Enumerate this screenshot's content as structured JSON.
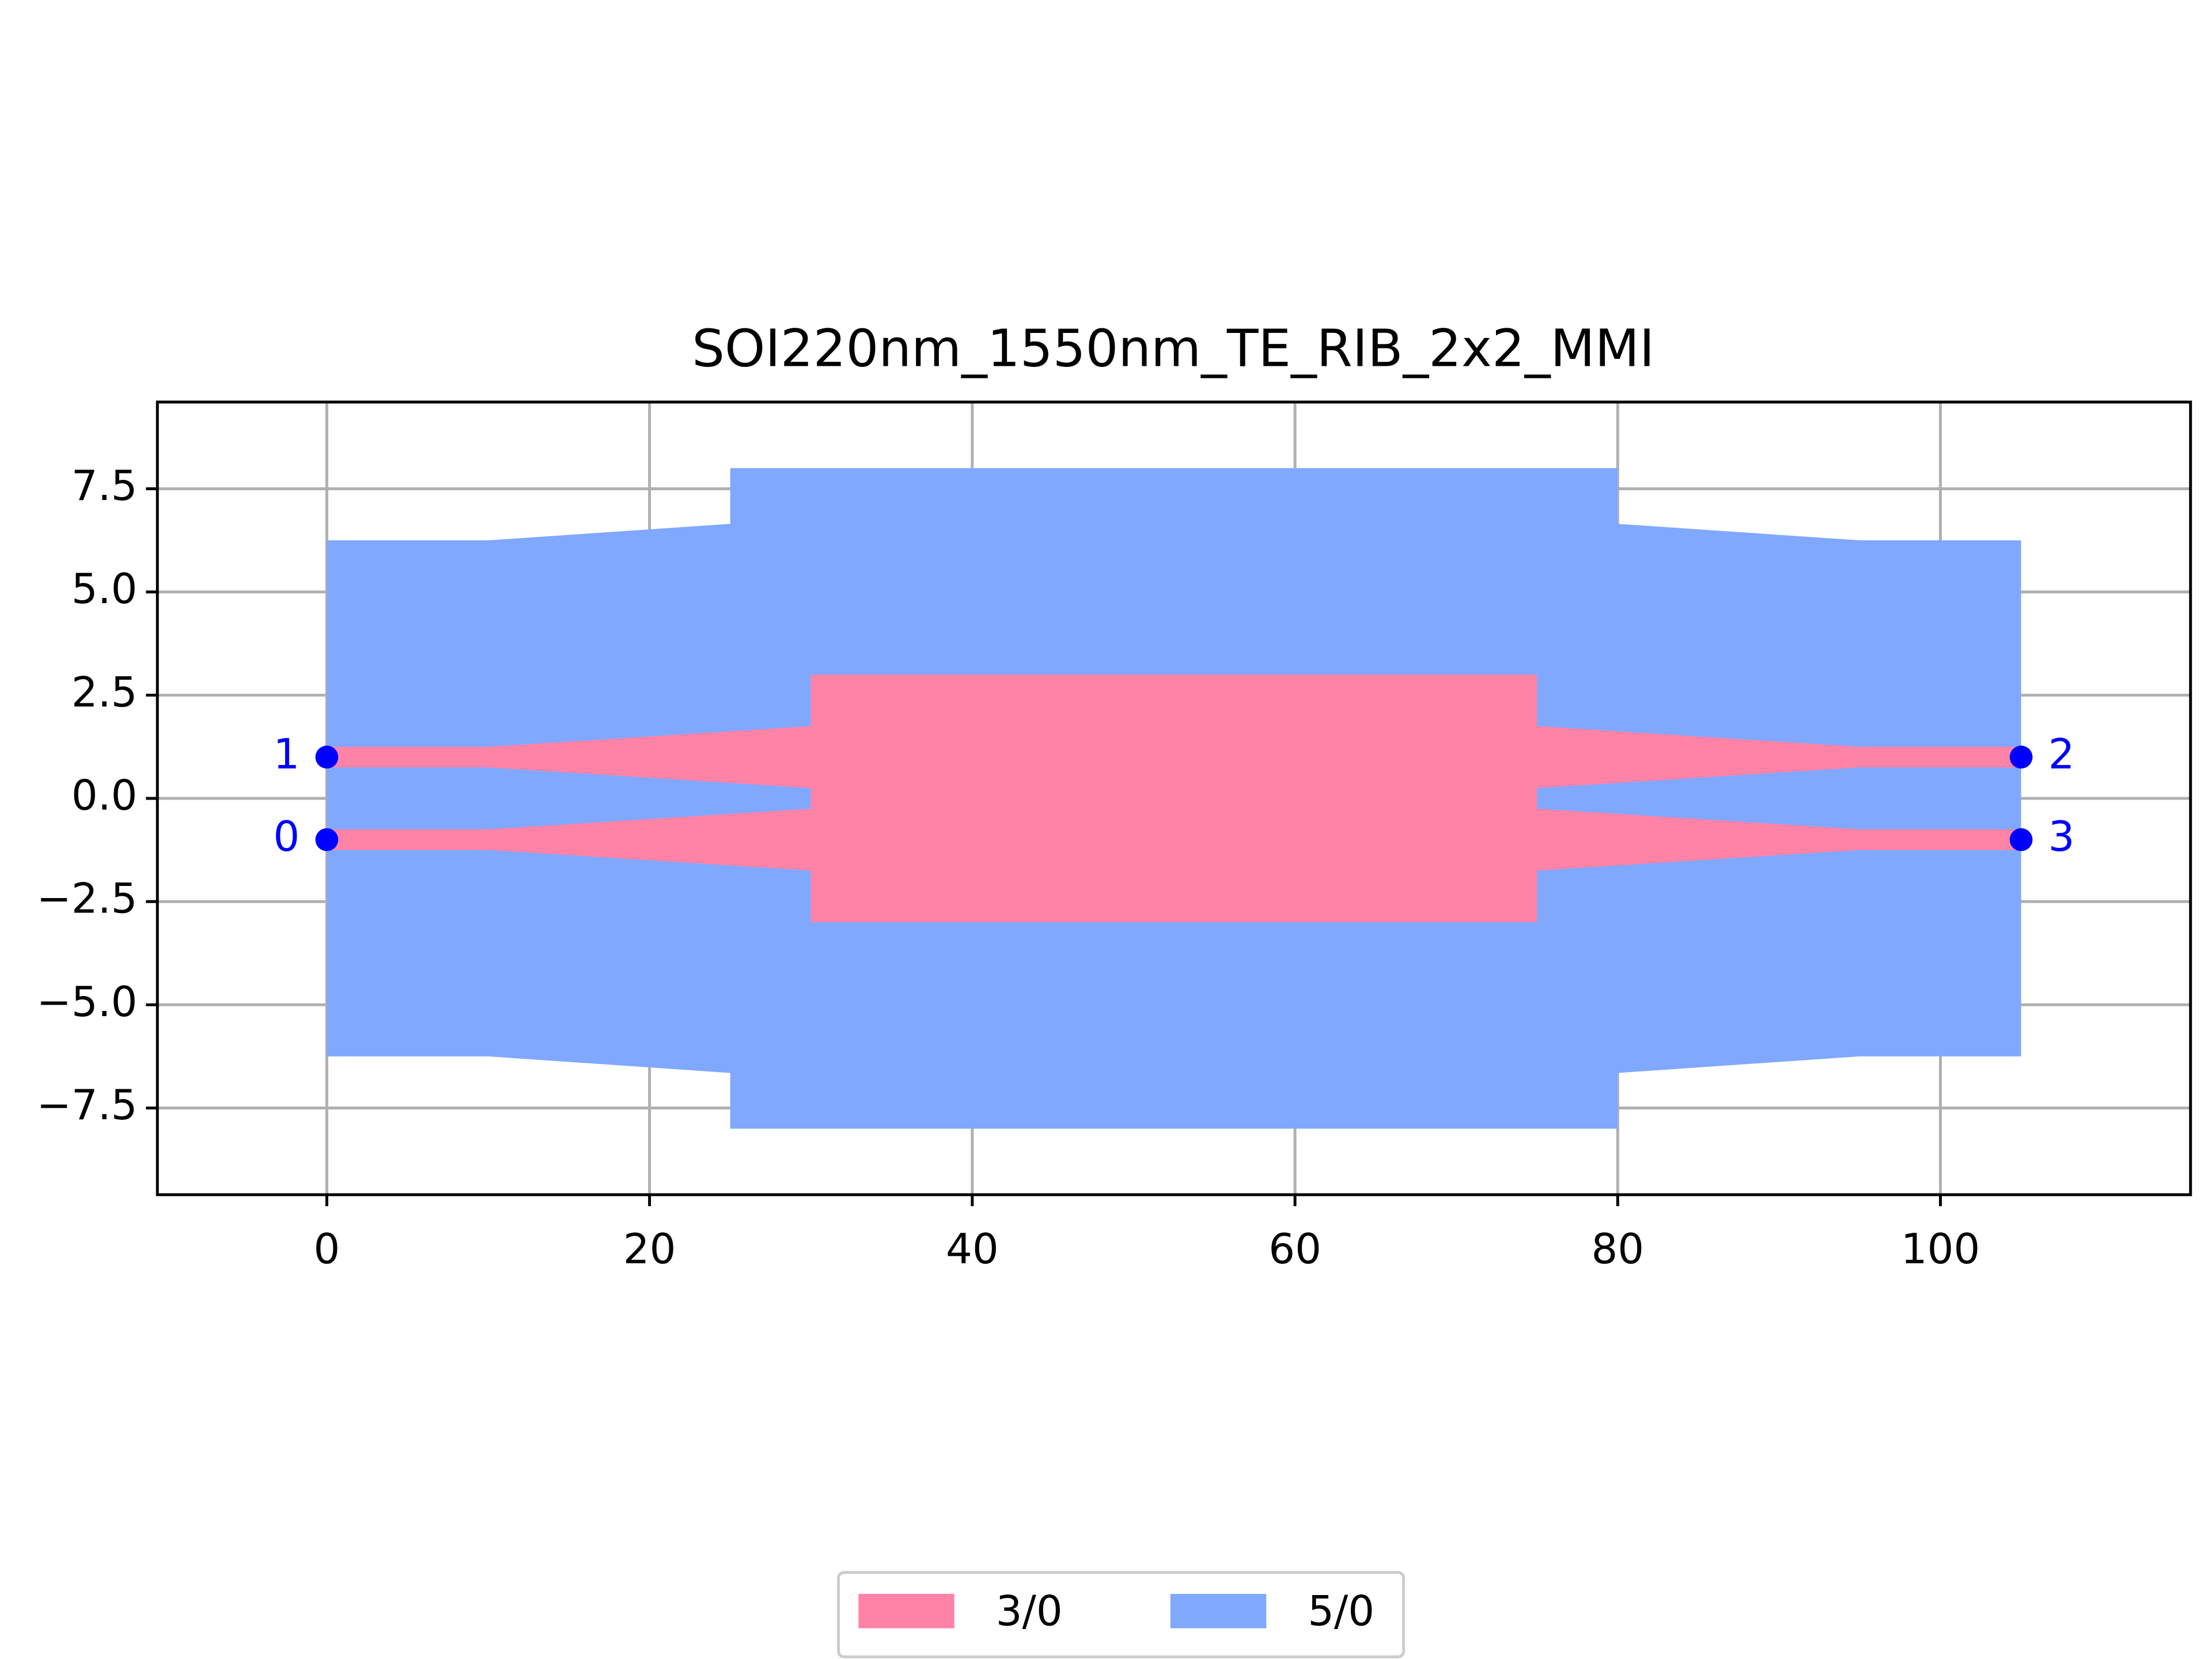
{
  "chart_data": {
    "type": "polygon",
    "title": "SOI220nm_1550nm_TE_RIB_2x2_MMI",
    "xlim": [
      -10.5,
      115.5
    ],
    "ylim": [
      -9.6,
      9.6
    ],
    "xticks": [
      0,
      20,
      40,
      60,
      80,
      100
    ],
    "yticks": [
      {
        "value": -7.5,
        "label": "−7.5"
      },
      {
        "value": -5,
        "label": "−5.0"
      },
      {
        "value": -2.5,
        "label": "−2.5"
      },
      {
        "value": 0,
        "label": "0.0"
      },
      2.5,
      {
        "value": 5,
        "label": "5.0"
      },
      7.5
    ],
    "grid": true,
    "legend": "lower center",
    "series": [
      {
        "name": "3/0",
        "color": "#ff82a7",
        "polygons": [
          {
            "x": [
              30,
              75,
              75,
              30
            ],
            "y": [
              3,
              3,
              -3,
              -3
            ]
          },
          {
            "x": [
              0,
              10,
              30,
              30,
              10,
              0
            ],
            "y": [
              1.25,
              1.25,
              1.75,
              0.25,
              0.75,
              0.75
            ]
          },
          {
            "x": [
              0,
              10,
              30,
              30,
              10,
              0
            ],
            "y": [
              -0.75,
              -0.75,
              -0.25,
              -1.75,
              -1.25,
              -1.25
            ]
          },
          {
            "x": [
              75,
              95,
              105,
              105,
              95,
              75
            ],
            "y": [
              1.75,
              1.25,
              1.25,
              0.75,
              0.75,
              0.25
            ]
          },
          {
            "x": [
              75,
              95,
              105,
              105,
              95,
              75
            ],
            "y": [
              -0.25,
              -0.75,
              -0.75,
              -1.25,
              -1.25,
              -1.75
            ]
          }
        ]
      },
      {
        "name": "5/0",
        "color": "#80a8ff",
        "polygons": [
          {
            "x": [
              0,
              10,
              25,
              25,
              80,
              80,
              95,
              105,
              105,
              95,
              80,
              80,
              25,
              25,
              10,
              0
            ],
            "y": [
              6.25,
              6.25,
              6.65,
              8,
              8,
              6.65,
              6.25,
              6.25,
              -6.25,
              -6.25,
              -6.65,
              -8,
              -8,
              -6.65,
              -6.25,
              -6.25
            ]
          }
        ]
      }
    ],
    "ports": {
      "color": "#0000ff",
      "labels": [
        "0",
        "1",
        "2",
        "3"
      ],
      "x": [
        0,
        0,
        105,
        105
      ],
      "y": [
        -1,
        1,
        1,
        -1
      ]
    }
  }
}
